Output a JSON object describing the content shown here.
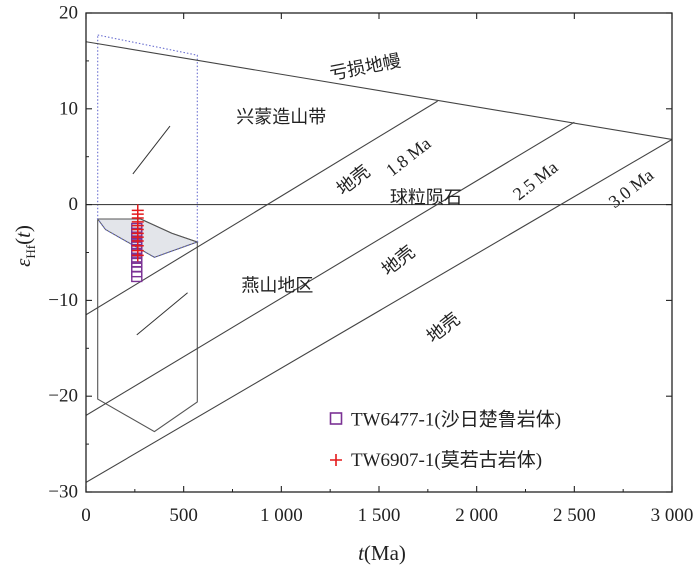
{
  "chart_data": {
    "type": "scatter",
    "xlabel": "t(Ma)",
    "ylabel": "εHf(t)",
    "xlim": [
      0,
      3000
    ],
    "ylim": [
      -30,
      20
    ],
    "x_ticks": [
      0,
      500,
      1000,
      1500,
      2000,
      2500,
      3000
    ],
    "x_tick_labels": [
      "0",
      "500",
      "1 000",
      "1 500",
      "2 000",
      "2 500",
      "3 000"
    ],
    "y_ticks": [
      -30,
      -20,
      -10,
      0,
      10,
      20
    ],
    "y_tick_labels": [
      "−30",
      "−20",
      "−10",
      "0",
      "10",
      "20"
    ],
    "grid": false,
    "legend_position": "bottom-right",
    "reference_lines": [
      {
        "name": "depleted_mantle",
        "label": "亏损地幔",
        "x": [
          0,
          3000
        ],
        "y": [
          17,
          6.8
        ]
      },
      {
        "name": "chur",
        "label": "球粒陨石",
        "x": [
          0,
          3000
        ],
        "y": [
          0,
          0
        ]
      },
      {
        "name": "crust_1_8",
        "label": "1.8 Ma",
        "x": [
          0,
          1800
        ],
        "y": [
          -11.5,
          10.8
        ]
      },
      {
        "name": "crust_2_5",
        "label": "2.5 Ma",
        "x": [
          0,
          2500
        ],
        "y": [
          -22,
          8.6
        ]
      },
      {
        "name": "crust_3_0",
        "label": "3.0 Ma",
        "x": [
          0,
          3000
        ],
        "y": [
          -29,
          6.8
        ]
      }
    ],
    "regions": [
      {
        "name": "xingmeng",
        "label": "兴蒙造山带",
        "polygon": [
          [
            60,
            17.7
          ],
          [
            570,
            15.6
          ],
          [
            570,
            -3.9
          ],
          [
            350,
            -5.5
          ],
          [
            100,
            -2.6
          ],
          [
            60,
            -1.5
          ]
        ]
      },
      {
        "name": "yanshan",
        "label": "燕山地区",
        "polygon": [
          [
            60,
            -1.5
          ],
          [
            280,
            -1.5
          ],
          [
            440,
            -3.0
          ],
          [
            570,
            -3.9
          ],
          [
            570,
            -20.6
          ],
          [
            350,
            -23.7
          ],
          [
            60,
            -20.3
          ]
        ]
      },
      {
        "name": "overlap",
        "polygon": [
          [
            60,
            -1.5
          ],
          [
            280,
            -1.5
          ],
          [
            440,
            -3.0
          ],
          [
            570,
            -3.9
          ],
          [
            350,
            -5.5
          ],
          [
            100,
            -2.6
          ]
        ]
      }
    ],
    "region_leaders": [
      {
        "region": "xingmeng",
        "from": [
          430,
          8.2
        ],
        "to": [
          240,
          3.2
        ]
      },
      {
        "region": "yanshan",
        "from": [
          520,
          -9.2
        ],
        "to": [
          260,
          -13.6
        ]
      }
    ],
    "annotations": [
      {
        "text": "亏损地幔",
        "x": 1430,
        "y": 14.3,
        "angle": -11
      },
      {
        "text": "兴蒙造山带",
        "x": 1000,
        "y": 9.1,
        "angle": 0
      },
      {
        "text": "1.8 Ma",
        "x": 1650,
        "y": 5.0,
        "angle": -38
      },
      {
        "text": "地壳",
        "x": 1370,
        "y": 2.5,
        "angle": -38
      },
      {
        "text": "球粒陨石",
        "x": 1740,
        "y": 0.7,
        "angle": 0
      },
      {
        "text": "2.5 Ma",
        "x": 2300,
        "y": 2.5,
        "angle": -38
      },
      {
        "text": "3.0 Ma",
        "x": 2790,
        "y": 1.7,
        "angle": -38
      },
      {
        "text": "地壳",
        "x": 1600,
        "y": -5.9,
        "angle": -38
      },
      {
        "text": "燕山地区",
        "x": 980,
        "y": -8.5,
        "angle": 0
      },
      {
        "text": "地壳",
        "x": 1830,
        "y": -12.9,
        "angle": -38
      }
    ],
    "series": [
      {
        "name": "TW6477-1(沙日楚鲁岩体)",
        "marker": "square",
        "color": "#7b3294",
        "x": [
          260,
          260,
          260,
          260,
          260,
          260,
          260,
          260,
          260,
          260,
          260,
          260
        ],
        "y": [
          -2.5,
          -3.0,
          -3.4,
          -3.8,
          -4.2,
          -4.7,
          -5.1,
          -5.6,
          -6.0,
          -6.5,
          -7.0,
          -7.5
        ]
      },
      {
        "name": "TW6907-1(莫若古岩体)",
        "marker": "plus",
        "color": "#e41a1c",
        "x": [
          265,
          265,
          265,
          265,
          265,
          265,
          265,
          265,
          265,
          265,
          265,
          265
        ],
        "y": [
          -0.6,
          -1.0,
          -1.4,
          -1.8,
          -2.2,
          -2.6,
          -3.0,
          -3.4,
          -3.8,
          -4.3,
          -4.8,
          -5.3
        ]
      }
    ]
  },
  "colors": {
    "axis": "#222222",
    "reference_line": "#444444",
    "region_blue": "#6a6fd0",
    "region_gray": "#555555",
    "overlap_fill": "#e3e5ea"
  }
}
